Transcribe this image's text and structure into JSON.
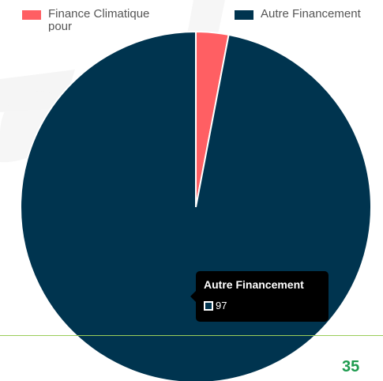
{
  "colors": {
    "finance_climatique": "#ff5f63",
    "autre_financement": "#00344f",
    "page_number": "#1e9b4f",
    "divider": "#9acd5a"
  },
  "chart_data": {
    "type": "pie",
    "categories": [
      "Finance Climatique pour",
      "Autre Financement"
    ],
    "values": [
      3,
      97
    ],
    "legend": [
      "Finance Climatique pour",
      "Autre Financement"
    ],
    "legend_position": "top"
  },
  "legend": {
    "item1": "Finance Climatique pour",
    "item2": "Autre Financement"
  },
  "tooltip": {
    "title": "Autre Financement",
    "value": "97"
  },
  "page": {
    "number": "35"
  }
}
